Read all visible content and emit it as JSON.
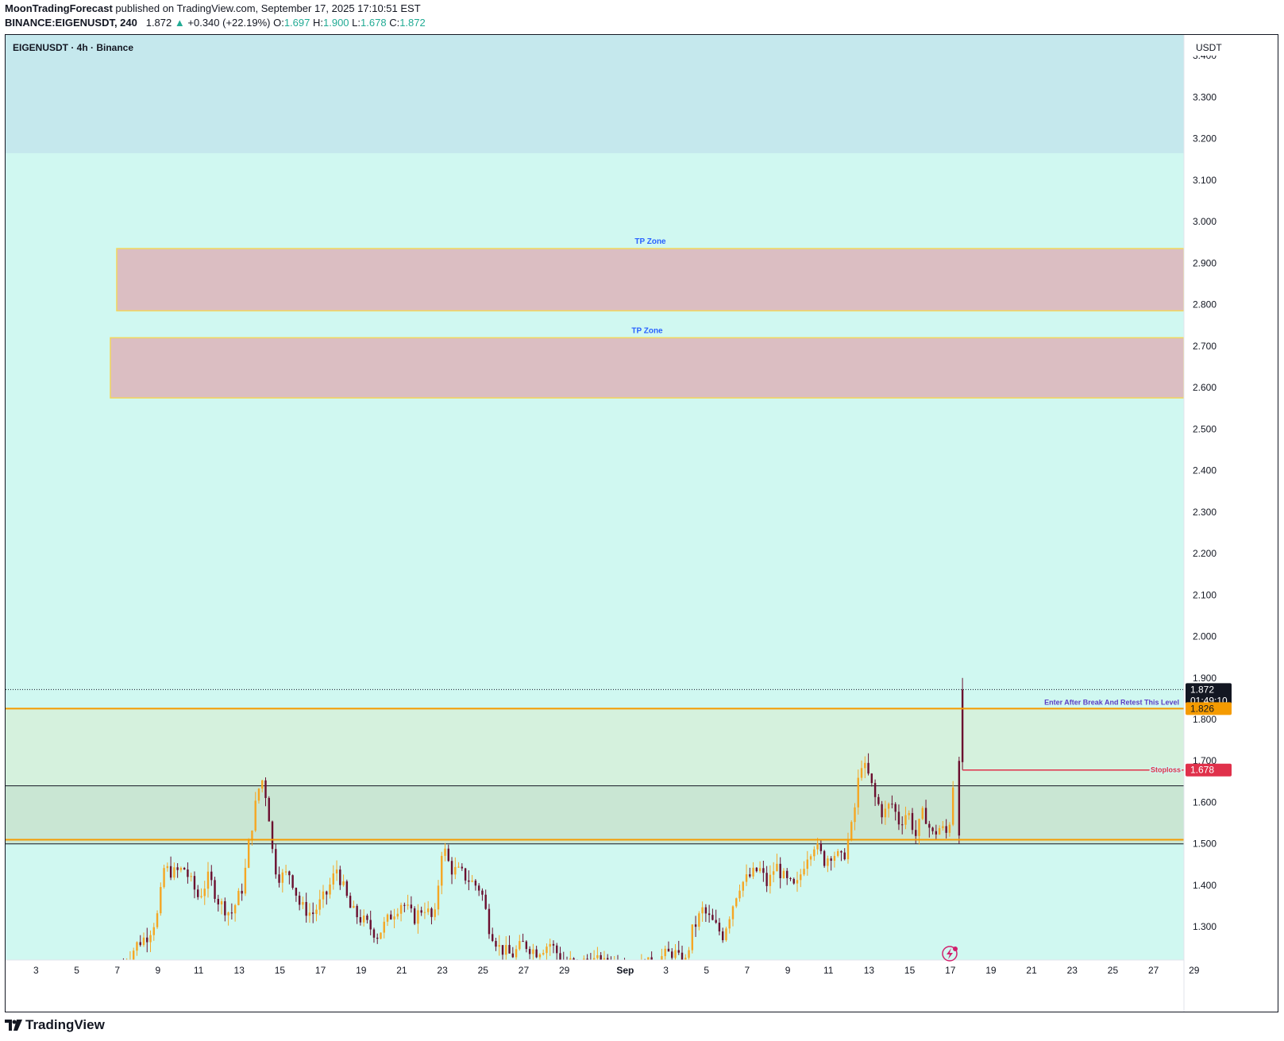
{
  "header": {
    "author": "MoonTradingForecast",
    "published_text": "published on TradingView.com, September 17, 2025 17:10:51 EST",
    "symbol_line": "BINANCE:EIGENUSDT, 240",
    "last": "1.872",
    "change": "+0.340 (+22.19%)",
    "o_label": "O:",
    "o_value": "1.697",
    "h_label": "H:",
    "h_value": "1.900",
    "l_label": "L:",
    "l_value": "1.678",
    "c_label": "C:",
    "c_value": "1.872"
  },
  "chart_title": "EIGENUSDT · 4h · Binance",
  "currency": "USDT",
  "footer": {
    "brand": "TradingView"
  },
  "colors": {
    "up_candle": "#f5a623",
    "down_candle": "#6b0f2f",
    "zone_top": "#c5e8ed",
    "zone_main": "#d0f8f1",
    "tp_zone_fill": "#dbbec2",
    "tp_zone_border": "#f2d65c",
    "entry_line": "#f59b00",
    "stoploss_line": "#e0314b",
    "green_zone": "#d5f1dd",
    "dark_green_zone": "#c9e6d3"
  },
  "chart_data": {
    "type": "candlestick",
    "symbol": "EIGENUSDT",
    "timeframe": "4h",
    "exchange": "Binance",
    "ylim": [
      1.22,
      3.45
    ],
    "y_ticks": [
      "3.400",
      "3.300",
      "3.200",
      "3.100",
      "3.000",
      "2.900",
      "2.800",
      "2.700",
      "2.600",
      "2.500",
      "2.400",
      "2.300",
      "2.200",
      "2.100",
      "2.000",
      "1.900",
      "1.800",
      "1.700",
      "1.600",
      "1.500",
      "1.400",
      "1.300"
    ],
    "x_ticks": [
      "3",
      "5",
      "7",
      "9",
      "11",
      "13",
      "15",
      "17",
      "19",
      "21",
      "23",
      "25",
      "27",
      "29",
      "Sep",
      "3",
      "5",
      "7",
      "9",
      "11",
      "13",
      "15",
      "17",
      "19",
      "21",
      "23",
      "25",
      "27",
      "29"
    ],
    "x_range_days": [
      "Aug 2",
      "Sep 29"
    ],
    "close_path": [
      {
        "d": 7.3,
        "p": 1.21
      },
      {
        "d": 8.0,
        "p": 1.26
      },
      {
        "d": 8.5,
        "p": 1.28
      },
      {
        "d": 9.0,
        "p": 1.33
      },
      {
        "d": 9.3,
        "p": 1.44
      },
      {
        "d": 9.8,
        "p": 1.43
      },
      {
        "d": 10.3,
        "p": 1.44
      },
      {
        "d": 11.0,
        "p": 1.37
      },
      {
        "d": 11.5,
        "p": 1.42
      },
      {
        "d": 12.0,
        "p": 1.36
      },
      {
        "d": 12.6,
        "p": 1.33
      },
      {
        "d": 13.2,
        "p": 1.4
      },
      {
        "d": 13.5,
        "p": 1.51
      },
      {
        "d": 13.9,
        "p": 1.62
      },
      {
        "d": 14.1,
        "p": 1.66
      },
      {
        "d": 14.4,
        "p": 1.6
      },
      {
        "d": 14.7,
        "p": 1.45
      },
      {
        "d": 15.0,
        "p": 1.42
      },
      {
        "d": 15.5,
        "p": 1.43
      },
      {
        "d": 16.0,
        "p": 1.35
      },
      {
        "d": 16.6,
        "p": 1.33
      },
      {
        "d": 17.3,
        "p": 1.38
      },
      {
        "d": 17.8,
        "p": 1.44
      },
      {
        "d": 18.5,
        "p": 1.34
      },
      {
        "d": 19.2,
        "p": 1.31
      },
      {
        "d": 19.8,
        "p": 1.28
      },
      {
        "d": 20.5,
        "p": 1.33
      },
      {
        "d": 21.0,
        "p": 1.36
      },
      {
        "d": 21.6,
        "p": 1.32
      },
      {
        "d": 22.1,
        "p": 1.35
      },
      {
        "d": 22.6,
        "p": 1.31
      },
      {
        "d": 23.0,
        "p": 1.5
      },
      {
        "d": 23.4,
        "p": 1.44
      },
      {
        "d": 23.9,
        "p": 1.43
      },
      {
        "d": 24.4,
        "p": 1.41
      },
      {
        "d": 24.9,
        "p": 1.39
      },
      {
        "d": 25.3,
        "p": 1.3
      },
      {
        "d": 25.8,
        "p": 1.25
      },
      {
        "d": 26.4,
        "p": 1.23
      },
      {
        "d": 27.0,
        "p": 1.26
      },
      {
        "d": 27.6,
        "p": 1.24
      },
      {
        "d": 28.3,
        "p": 1.26
      },
      {
        "d": 28.9,
        "p": 1.22
      },
      {
        "d": 29.6,
        "p": 1.21
      },
      {
        "d": 30.3,
        "p": 1.22
      },
      {
        "d": 31.0,
        "p": 1.21
      },
      {
        "d": 31.6,
        "p": 1.22
      },
      {
        "d": 32.4,
        "p": 1.2
      },
      {
        "d": 33.2,
        "p": 1.21
      },
      {
        "d": 33.9,
        "p": 1.23
      },
      {
        "d": 34.4,
        "p": 1.24
      },
      {
        "d": 34.9,
        "p": 1.2
      },
      {
        "d": 35.3,
        "p": 1.29
      },
      {
        "d": 35.8,
        "p": 1.34
      },
      {
        "d": 36.3,
        "p": 1.31
      },
      {
        "d": 36.8,
        "p": 1.28
      },
      {
        "d": 37.2,
        "p": 1.34
      },
      {
        "d": 37.6,
        "p": 1.4
      },
      {
        "d": 38.1,
        "p": 1.42
      },
      {
        "d": 38.6,
        "p": 1.44
      },
      {
        "d": 39.0,
        "p": 1.4
      },
      {
        "d": 39.4,
        "p": 1.45
      },
      {
        "d": 39.9,
        "p": 1.41
      },
      {
        "d": 40.4,
        "p": 1.39
      },
      {
        "d": 40.9,
        "p": 1.47
      },
      {
        "d": 41.3,
        "p": 1.5
      },
      {
        "d": 41.8,
        "p": 1.46
      },
      {
        "d": 42.2,
        "p": 1.48
      },
      {
        "d": 42.7,
        "p": 1.46
      },
      {
        "d": 43.2,
        "p": 1.55
      },
      {
        "d": 43.6,
        "p": 1.7
      },
      {
        "d": 44.0,
        "p": 1.66
      },
      {
        "d": 44.3,
        "p": 1.61
      },
      {
        "d": 44.7,
        "p": 1.57
      },
      {
        "d": 45.1,
        "p": 1.6
      },
      {
        "d": 45.5,
        "p": 1.55
      },
      {
        "d": 45.9,
        "p": 1.58
      },
      {
        "d": 46.3,
        "p": 1.52
      },
      {
        "d": 46.7,
        "p": 1.58
      },
      {
        "d": 47.1,
        "p": 1.52
      },
      {
        "d": 47.5,
        "p": 1.54
      },
      {
        "d": 47.9,
        "p": 1.52
      },
      {
        "d": 48.2,
        "p": 1.68
      },
      {
        "d": 48.4,
        "p": 1.83
      },
      {
        "d": 48.6,
        "p": 1.872
      }
    ]
  },
  "annotations": {
    "tp_zone_1": {
      "label": "TP Zone",
      "price_top": 2.935,
      "price_bottom": 2.785
    },
    "tp_zone_2": {
      "label": "TP Zone",
      "price_top": 2.72,
      "price_bottom": 2.575
    },
    "top_zone": {
      "price_bottom": 3.165
    },
    "entry": {
      "label": "Enter After Break And Retest This Level",
      "price": 1.826,
      "price_label": "1.826"
    },
    "stoploss": {
      "label": "Stoploss",
      "price": 1.678,
      "price_label": "1.678",
      "from_day": 48.6
    },
    "support_box": {
      "price_top": 1.64,
      "price_bottom": 1.5
    },
    "support_line": {
      "price": 1.51
    },
    "last_price": {
      "price": 1.872,
      "price_label": "1.872",
      "countdown": "01:49:10"
    }
  }
}
